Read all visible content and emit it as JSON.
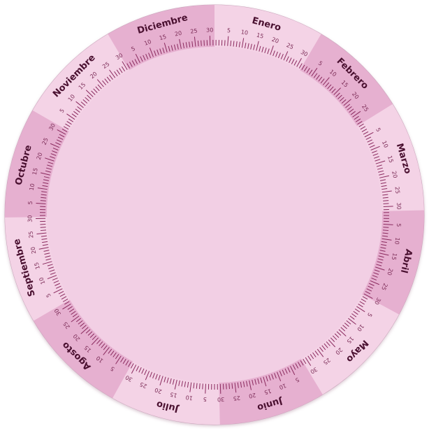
{
  "calendar": {
    "months": [
      {
        "name": "Enero",
        "days": 31,
        "shade": "light"
      },
      {
        "name": "Febrero",
        "days": 28,
        "shade": "dark"
      },
      {
        "name": "Marzo",
        "days": 31,
        "shade": "light"
      },
      {
        "name": "Abril",
        "days": 30,
        "shade": "dark"
      },
      {
        "name": "Mayo",
        "days": 31,
        "shade": "light"
      },
      {
        "name": "Junio",
        "days": 30,
        "shade": "dark"
      },
      {
        "name": "Julio",
        "days": 31,
        "shade": "light"
      },
      {
        "name": "Agosto",
        "days": 31,
        "shade": "dark"
      },
      {
        "name": "Septiembre",
        "days": 30,
        "shade": "light"
      },
      {
        "name": "Octubre",
        "days": 31,
        "shade": "dark"
      },
      {
        "name": "Noviembre",
        "days": 30,
        "shade": "light"
      },
      {
        "name": "Diciembre",
        "days": 31,
        "shade": "dark"
      }
    ],
    "day_marks": [
      "5",
      "10",
      "15",
      "20",
      "25",
      "30"
    ],
    "colors": {
      "ring_light": "#f4d3e6",
      "ring_dark": "#e6b0d0",
      "inner_disc": "#f2cfe4",
      "outline": "#c9a3ba",
      "tick": "#8a2a5e",
      "month_text": "#4a1030",
      "day_text": "#7a2a55"
    }
  }
}
